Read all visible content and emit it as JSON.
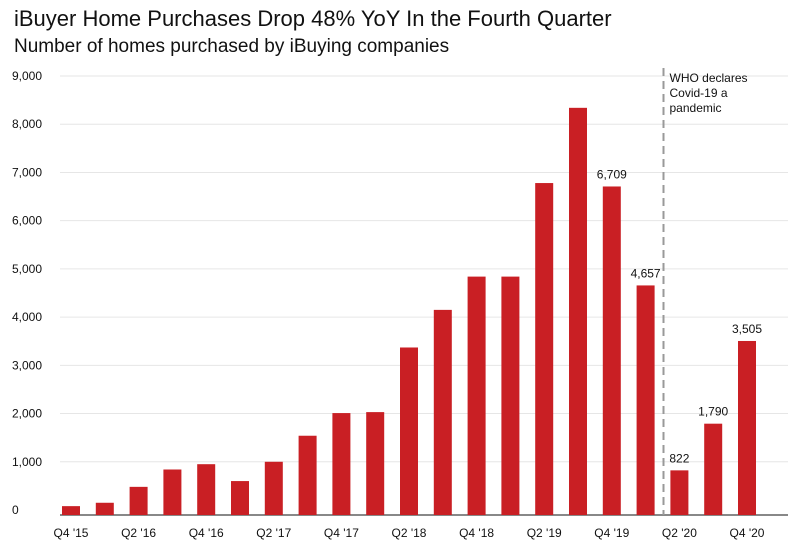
{
  "chart_data": {
    "type": "bar",
    "title": "iBuyer Home Purchases Drop 48% YoY In the Fourth Quarter",
    "subtitle": "Number of homes purchased by iBuying companies",
    "xlabel": "",
    "ylabel": "",
    "ylim": [
      0,
      9000
    ],
    "yticks": [
      0,
      1000,
      2000,
      3000,
      4000,
      5000,
      6000,
      7000,
      8000,
      9000
    ],
    "ytick_labels": [
      "0",
      "1,000",
      "2,000",
      "3,000",
      "4,000",
      "5,000",
      "6,000",
      "7,000",
      "8,000",
      "9,000"
    ],
    "grid": true,
    "color": "#c91f24",
    "categories": [
      "Q4 '15",
      "Q1 '16",
      "Q2 '16",
      "Q3 '16",
      "Q4 '16",
      "Q1 '17",
      "Q2 '17",
      "Q3 '17",
      "Q4 '17",
      "Q1 '18",
      "Q2 '18",
      "Q3 '18",
      "Q4 '18",
      "Q1 '19",
      "Q2 '19",
      "Q3 '19",
      "Q4 '19",
      "Q1 '20",
      "Q2 '20",
      "Q3 '20",
      "Q4 '20"
    ],
    "tick_labels": [
      "Q4 '15",
      "",
      "Q2 '16",
      "",
      "Q4 '16",
      "",
      "Q2 '17",
      "",
      "Q4 '17",
      "",
      "Q2 '18",
      "",
      "Q4 '18",
      "",
      "Q2 '19",
      "",
      "Q4 '19",
      "",
      "Q2 '20",
      "",
      "Q4 '20"
    ],
    "values": [
      80,
      150,
      480,
      840,
      950,
      600,
      1000,
      1540,
      2010,
      2030,
      3370,
      4150,
      4840,
      4840,
      6780,
      8340,
      6709,
      4657,
      822,
      1790,
      3505
    ],
    "data_labels": [
      "",
      "",
      "",
      "",
      "",
      "",
      "",
      "",
      "",
      "",
      "",
      "",
      "",
      "",
      "",
      "",
      "6,709",
      "4,657",
      "822",
      "1,790",
      "3,505"
    ],
    "annotation": {
      "lines": [
        "WHO declares",
        "Covid-19 a",
        "pandemic"
      ]
    }
  }
}
